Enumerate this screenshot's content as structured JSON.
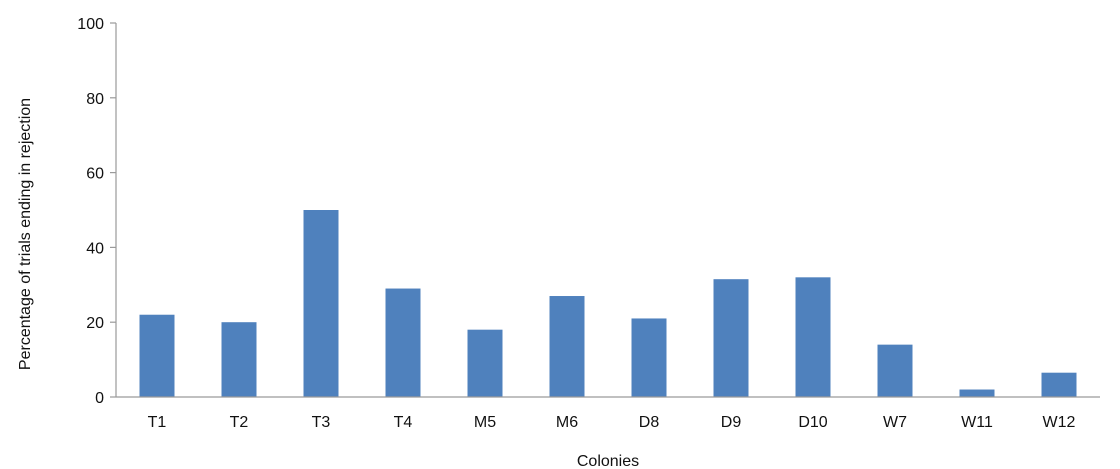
{
  "chart_data": {
    "type": "bar",
    "categories": [
      "T1",
      "T2",
      "T3",
      "T4",
      "M5",
      "M6",
      "D8",
      "D9",
      "D10",
      "W7",
      "W11",
      "W12"
    ],
    "values": [
      22,
      20,
      50,
      29,
      18,
      27,
      21,
      31.5,
      32,
      14,
      2,
      6.5
    ],
    "xlabel": "Colonies",
    "ylabel": "Percentage of trials ending in rejection",
    "ylim": [
      0,
      100
    ],
    "yticks": [
      0,
      20,
      40,
      60,
      80,
      100
    ],
    "grid": false,
    "bar_color": "#4f81bd",
    "axis_color": "#9a9a9a"
  }
}
